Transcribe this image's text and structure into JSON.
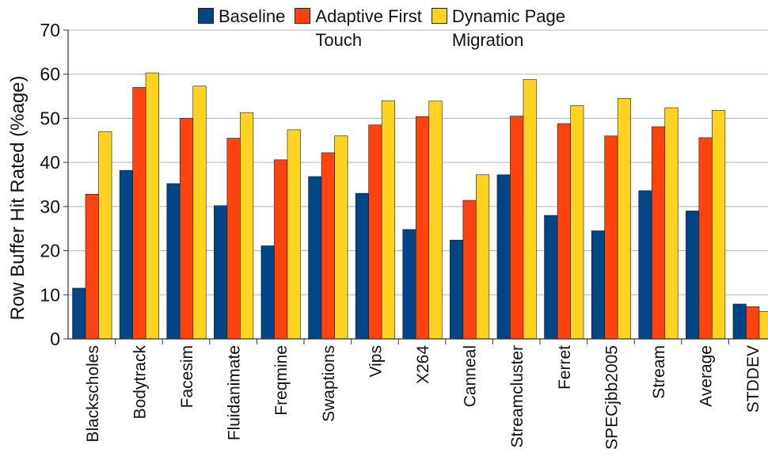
{
  "chart_data": {
    "type": "bar",
    "ylabel": "Row Buffer Hit Rated (%age)",
    "xlabel": "",
    "title": "",
    "ylim": [
      0,
      70
    ],
    "yticks": [
      0,
      10,
      20,
      30,
      40,
      50,
      60,
      70
    ],
    "grid": "horizontal",
    "legend_position": "top",
    "categories": [
      "Blackscholes",
      "Bodytrack",
      "Facesim",
      "Fluidanimate",
      "Freqmine",
      "Swaptions",
      "Vips",
      "X264",
      "Canneal",
      "Streamcluster",
      "Ferret",
      "SPECjbb2005",
      "Stream",
      "Average",
      "STDDEV"
    ],
    "series": [
      {
        "name": "Baseline",
        "color": "#004586",
        "values": [
          11.5,
          38.2,
          35.2,
          30.2,
          21.1,
          36.8,
          33.0,
          24.8,
          22.4,
          37.2,
          28.0,
          24.5,
          33.6,
          29.0,
          7.9
        ]
      },
      {
        "name": "Adaptive First\nTouch",
        "color": "#ff420e",
        "values": [
          32.8,
          57.0,
          50.0,
          45.5,
          40.6,
          42.2,
          48.5,
          50.4,
          31.4,
          50.5,
          48.8,
          46.0,
          48.1,
          45.6,
          7.3
        ]
      },
      {
        "name": "Dynamic Page\nMigration",
        "color": "#ffd320",
        "values": [
          47.0,
          60.3,
          57.3,
          51.3,
          47.4,
          46.0,
          54.0,
          53.9,
          37.2,
          58.8,
          52.9,
          54.5,
          52.4,
          51.8,
          6.2
        ]
      }
    ]
  }
}
